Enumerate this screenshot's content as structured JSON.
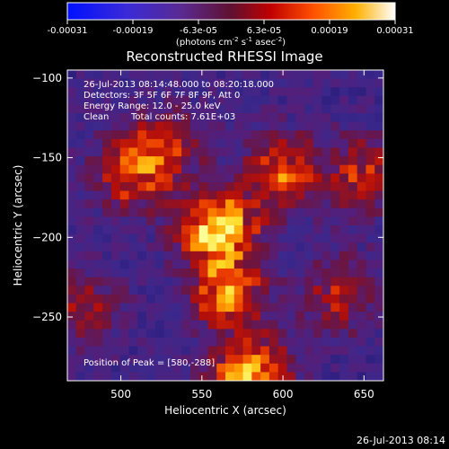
{
  "colorbar": {
    "ticks": [
      "-0.00031",
      "-0.00019",
      "-6.3e-05",
      "6.3e-05",
      "0.00019",
      "0.00031"
    ],
    "unit_base": "(photons cm",
    "unit_exp1": "-2",
    "unit_mid": " s",
    "unit_exp2": "-1",
    "unit_end": " asec",
    "unit_exp3": "-2",
    "unit_close": ")"
  },
  "info": {
    "time_range": "26-Jul-2013 08:14:48.000 to 08:20:18.000",
    "detectors": "Detectors: 3F 5F 6F 7F 8F 9F, Att 0",
    "energy": "Energy Range: 12.0 - 25.0 keV",
    "clean": "Clean",
    "counts": "Total counts: 7.61E+03",
    "peak": "Position of Peak = [580,-288]"
  },
  "footer": {
    "timestamp": "26-Jul-2013 08:14"
  },
  "colors": {
    "background": "#000000",
    "text": "#ffffff",
    "low": "#3c2a8a",
    "mid": "#b01010",
    "high": "#ffff80"
  },
  "chart_data": {
    "type": "heatmap",
    "title": "Reconstructed RHESSI Image",
    "xlabel": "Heliocentric X (arcsec)",
    "ylabel": "Heliocentric Y (arcsec)",
    "xticks": [
      "500",
      "550",
      "600",
      "650"
    ],
    "yticks": [
      "-100",
      "-150",
      "-200",
      "-250"
    ],
    "xlim": [
      467,
      662
    ],
    "ylim": [
      -290,
      -95
    ],
    "color_range": [
      -0.00031,
      0.00031
    ],
    "colormap": "blue-purple-red-yellow-white",
    "grid": false,
    "peak_position": [
      580,
      -288
    ],
    "sources": [
      {
        "x": 560,
        "y": -195,
        "level": 0.8
      },
      {
        "x": 565,
        "y": -235,
        "level": 0.55
      },
      {
        "x": 508,
        "y": -160,
        "level": 0.5
      },
      {
        "x": 600,
        "y": -160,
        "level": 0.5
      },
      {
        "x": 530,
        "y": -140,
        "level": 0.3
      },
      {
        "x": 650,
        "y": -160,
        "level": 0.4
      },
      {
        "x": 635,
        "y": -235,
        "level": 0.35
      },
      {
        "x": 478,
        "y": -245,
        "level": 0.3
      },
      {
        "x": 580,
        "y": -288,
        "level": 0.75
      }
    ]
  }
}
